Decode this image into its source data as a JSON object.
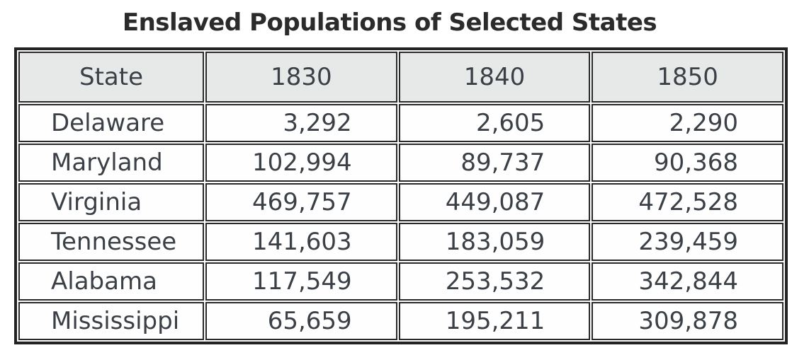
{
  "title": "Enslaved Populations of Selected States",
  "table": {
    "columns": [
      "State",
      "1830",
      "1840",
      "1850"
    ],
    "rows": [
      {
        "state": "Delaware",
        "values": [
          "3,292",
          "2,605",
          "2,290"
        ]
      },
      {
        "state": "Maryland",
        "values": [
          "102,994",
          "89,737",
          "90,368"
        ]
      },
      {
        "state": "Virginia",
        "values": [
          "469,757",
          "449,087",
          "472,528"
        ]
      },
      {
        "state": "Tennessee",
        "values": [
          "141,603",
          "183,059",
          "239,459"
        ]
      },
      {
        "state": "Alabama",
        "values": [
          "117,549",
          "253,532",
          "342,844"
        ]
      },
      {
        "state": "Mississippi",
        "values": [
          "65,659",
          "195,211",
          "309,878"
        ]
      }
    ]
  },
  "colors": {
    "header_background": "#e7e9e9",
    "cell_background": "#fefefe",
    "border": "#232323",
    "cell_text": "#3b4047",
    "title_text": "#2b2b2b",
    "page_background": "#ffffff"
  },
  "chart_data": {
    "type": "table",
    "title": "Enslaved Populations of Selected States",
    "row_header": "State",
    "categories": [
      "Delaware",
      "Maryland",
      "Virginia",
      "Tennessee",
      "Alabama",
      "Mississippi"
    ],
    "series": [
      {
        "name": "1830",
        "values": [
          3292,
          102994,
          469757,
          141603,
          117549,
          65659
        ]
      },
      {
        "name": "1840",
        "values": [
          2605,
          89737,
          449087,
          183059,
          253532,
          195211
        ]
      },
      {
        "name": "1850",
        "values": [
          2290,
          90368,
          472528,
          239459,
          342844,
          309878
        ]
      }
    ],
    "layout": {
      "header_shaded": true,
      "numbers_right_aligned": true,
      "grid": "full-borders"
    }
  }
}
